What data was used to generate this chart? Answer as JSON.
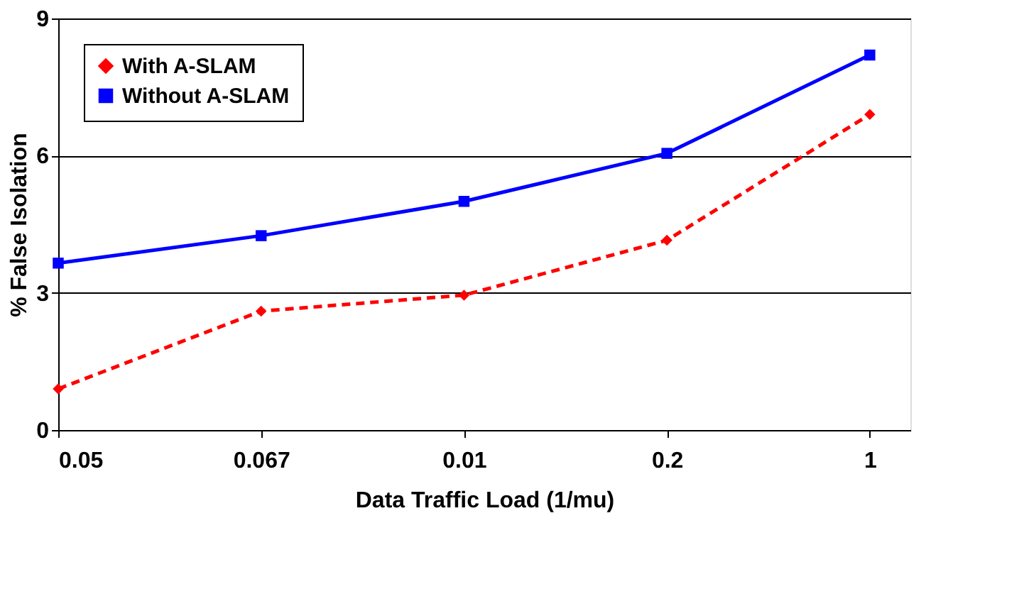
{
  "chart_data": {
    "type": "line",
    "xlabel": "Data Traffic Load (1/mu)",
    "ylabel": "% False Isolation",
    "categories": [
      "0.05",
      "0.067",
      "0.01",
      "0.2",
      "1"
    ],
    "series": [
      {
        "name": "With A-SLAM",
        "color": "#ff0000",
        "values": [
          0.9,
          2.6,
          2.95,
          4.15,
          6.9
        ],
        "marker": "diamond",
        "line_style": "dashed"
      },
      {
        "name": "Without A-SLAM",
        "color": "#0000ff",
        "values": [
          3.65,
          4.25,
          5.0,
          6.05,
          8.2
        ],
        "marker": "square",
        "line_style": "solid"
      }
    ],
    "ylim": [
      0,
      9
    ],
    "yticks": [
      0,
      3,
      6,
      9
    ],
    "grid": "y",
    "legend": "top left"
  }
}
